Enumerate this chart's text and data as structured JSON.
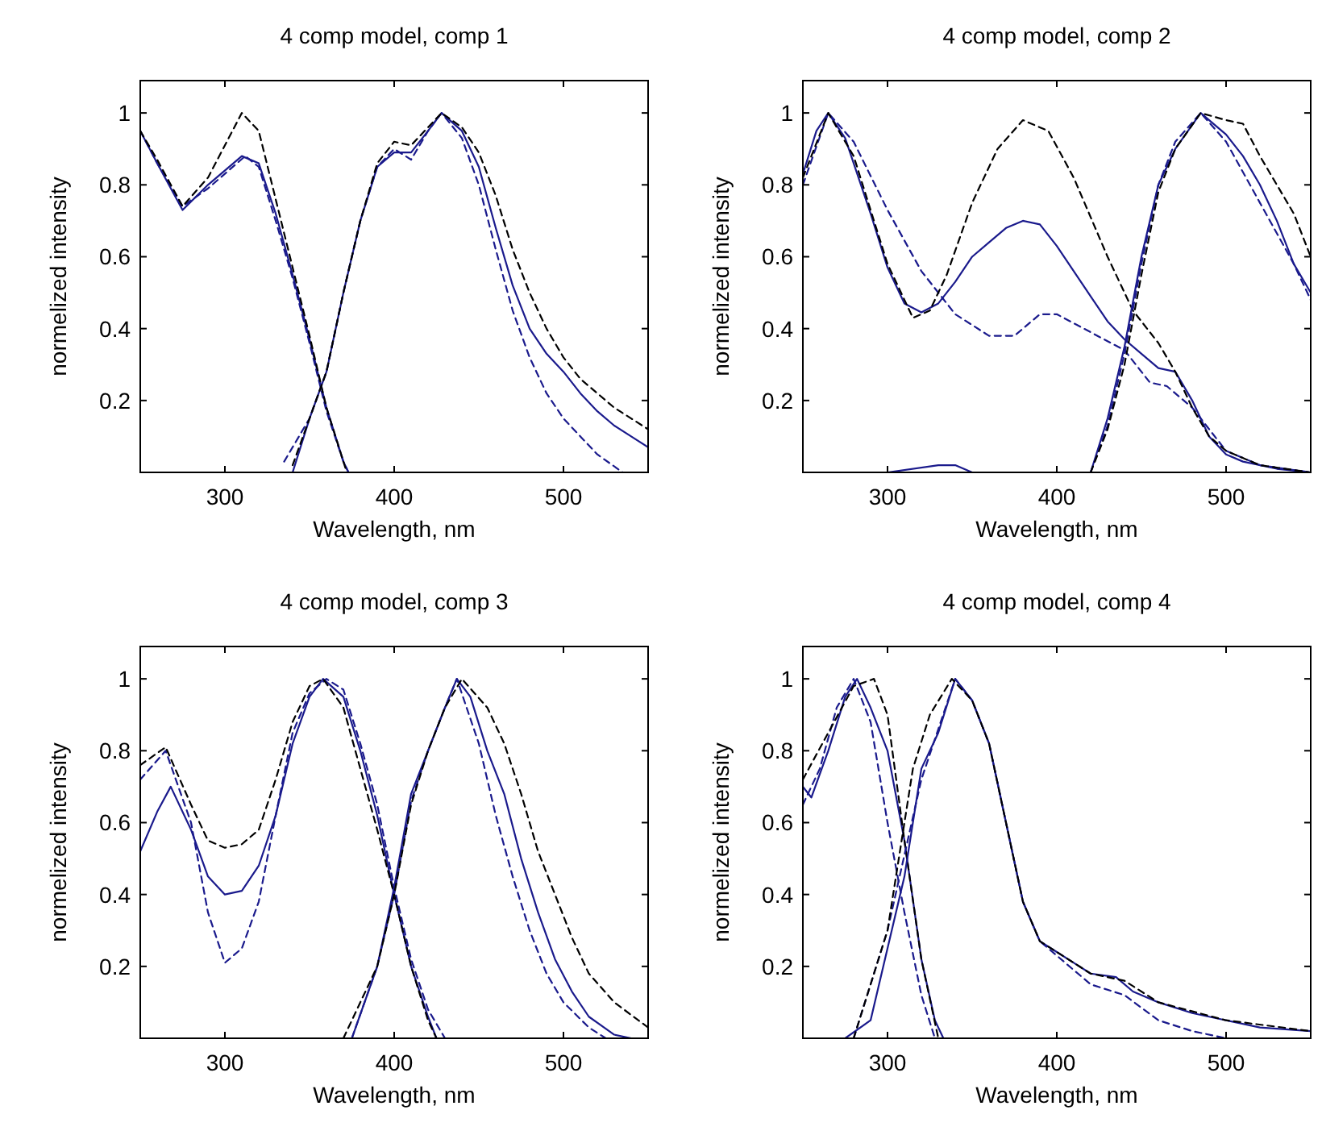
{
  "chart_data": [
    {
      "type": "line",
      "title": "4 comp model, comp 1",
      "xlabel": "Wavelength, nm",
      "ylabel": "normelized intensity",
      "xlim": [
        250,
        550
      ],
      "ylim": [
        0,
        1.09
      ],
      "xticks": [
        300,
        400,
        500
      ],
      "yticks": [
        0.2,
        0.4,
        0.6,
        0.8,
        1
      ],
      "grid": false,
      "series": [
        {
          "color": "#1a1a8c",
          "line_style": "solid",
          "x": [
            250,
            260,
            275,
            290,
            310,
            320,
            330,
            340,
            350,
            360,
            370,
            373
          ],
          "values": [
            0.95,
            0.86,
            0.73,
            0.8,
            0.88,
            0.86,
            0.72,
            0.55,
            0.37,
            0.18,
            0.03,
            0
          ]
        },
        {
          "color": "#1a1a8c",
          "line_style": "dashed",
          "x": [
            250,
            260,
            275,
            290,
            312,
            320,
            330,
            340,
            350,
            360,
            370,
            373
          ],
          "values": [
            0.95,
            0.86,
            0.74,
            0.79,
            0.88,
            0.85,
            0.7,
            0.54,
            0.36,
            0.17,
            0.03,
            0
          ]
        },
        {
          "color": "#000000",
          "line_style": "dashed",
          "x": [
            250,
            260,
            275,
            290,
            310,
            320,
            330,
            340,
            350,
            360,
            370,
            372
          ],
          "values": [
            0.95,
            0.87,
            0.74,
            0.82,
            1,
            0.95,
            0.76,
            0.57,
            0.38,
            0.18,
            0.03,
            0
          ]
        },
        {
          "color": "#1a1a8c",
          "line_style": "solid",
          "x": [
            340,
            350,
            360,
            370,
            380,
            390,
            400,
            410,
            420,
            428,
            440,
            450,
            460,
            470,
            480,
            490,
            500,
            510,
            520,
            530,
            540,
            550
          ],
          "values": [
            0,
            0.15,
            0.28,
            0.5,
            0.7,
            0.85,
            0.89,
            0.89,
            0.95,
            1,
            0.95,
            0.85,
            0.68,
            0.52,
            0.4,
            0.33,
            0.28,
            0.22,
            0.17,
            0.13,
            0.1,
            0.07
          ]
        },
        {
          "color": "#1a1a8c",
          "line_style": "dashed",
          "x": [
            335,
            350,
            360,
            370,
            380,
            390,
            400,
            410,
            420,
            428,
            440,
            450,
            460,
            470,
            480,
            490,
            500,
            510,
            520,
            535
          ],
          "values": [
            0.03,
            0.15,
            0.28,
            0.5,
            0.7,
            0.85,
            0.9,
            0.87,
            0.95,
            1,
            0.93,
            0.8,
            0.62,
            0.45,
            0.32,
            0.22,
            0.15,
            0.1,
            0.05,
            0
          ]
        },
        {
          "color": "#000000",
          "line_style": "dashed",
          "x": [
            340,
            350,
            360,
            370,
            380,
            390,
            400,
            410,
            420,
            428,
            440,
            450,
            460,
            470,
            480,
            490,
            500,
            510,
            520,
            530,
            540,
            550
          ],
          "values": [
            0.02,
            0.15,
            0.28,
            0.5,
            0.7,
            0.86,
            0.92,
            0.91,
            0.96,
            1,
            0.96,
            0.89,
            0.77,
            0.62,
            0.5,
            0.4,
            0.32,
            0.26,
            0.22,
            0.18,
            0.15,
            0.12
          ]
        }
      ]
    },
    {
      "type": "line",
      "title": "4 comp model, comp 2",
      "xlabel": "Wavelength, nm",
      "ylabel": "normelized intensity",
      "xlim": [
        250,
        550
      ],
      "ylim": [
        0,
        1.09
      ],
      "xticks": [
        300,
        400,
        500
      ],
      "yticks": [
        0.2,
        0.4,
        0.6,
        0.8,
        1
      ],
      "grid": false,
      "series": [
        {
          "color": "#1a1a8c",
          "line_style": "solid",
          "x": [
            250,
            258,
            265,
            275,
            290,
            300,
            310,
            320,
            330,
            340,
            350,
            360,
            370,
            380,
            390,
            400,
            410,
            420,
            430,
            440,
            450,
            460,
            470,
            480,
            490,
            500,
            510,
            530,
            550
          ],
          "values": [
            0.83,
            0.95,
            1,
            0.93,
            0.72,
            0.57,
            0.47,
            0.445,
            0.47,
            0.53,
            0.6,
            0.64,
            0.68,
            0.7,
            0.69,
            0.63,
            0.56,
            0.49,
            0.42,
            0.37,
            0.33,
            0.29,
            0.28,
            0.2,
            0.1,
            0.05,
            0.03,
            0.01,
            0
          ]
        },
        {
          "color": "#1a1a8c",
          "line_style": "dashed",
          "x": [
            250,
            265,
            280,
            300,
            320,
            340,
            360,
            375,
            390,
            400,
            420,
            440,
            455,
            465,
            480,
            500,
            520,
            550
          ],
          "values": [
            0.8,
            1,
            0.92,
            0.73,
            0.56,
            0.44,
            0.38,
            0.38,
            0.44,
            0.44,
            0.39,
            0.34,
            0.25,
            0.24,
            0.18,
            0.06,
            0.02,
            0
          ]
        },
        {
          "color": "#000000",
          "line_style": "dashed",
          "x": [
            250,
            265,
            280,
            300,
            315,
            325,
            335,
            350,
            365,
            380,
            395,
            410,
            430,
            445,
            460,
            470,
            480,
            490,
            500,
            520,
            550
          ],
          "values": [
            0.82,
            1,
            0.88,
            0.58,
            0.43,
            0.45,
            0.55,
            0.75,
            0.9,
            0.98,
            0.95,
            0.82,
            0.6,
            0.45,
            0.36,
            0.28,
            0.18,
            0.1,
            0.06,
            0.02,
            0
          ]
        },
        {
          "color": "#1a1a8c",
          "line_style": "solid",
          "x": [
            300,
            330,
            340,
            350,
            420,
            430,
            440,
            450,
            460,
            470,
            485,
            500,
            510,
            520,
            530,
            540,
            550
          ],
          "values": [
            0,
            0.02,
            0.02,
            0,
            0,
            0.15,
            0.35,
            0.6,
            0.8,
            0.9,
            1,
            0.94,
            0.88,
            0.8,
            0.7,
            0.58,
            0.5
          ]
        },
        {
          "color": "#1a1a8c",
          "line_style": "dashed",
          "x": [
            420,
            430,
            440,
            450,
            460,
            470,
            485,
            500,
            520,
            540,
            550
          ],
          "values": [
            0,
            0.13,
            0.33,
            0.58,
            0.8,
            0.92,
            1,
            0.92,
            0.75,
            0.58,
            0.48
          ]
        },
        {
          "color": "#000000",
          "line_style": "dashed",
          "x": [
            420,
            430,
            440,
            450,
            460,
            470,
            485,
            500,
            510,
            520,
            540,
            550
          ],
          "values": [
            0,
            0.12,
            0.3,
            0.55,
            0.78,
            0.9,
            1,
            0.98,
            0.97,
            0.88,
            0.72,
            0.6
          ]
        }
      ]
    },
    {
      "type": "line",
      "title": "4 comp model, comp 3",
      "xlabel": "Wavelength, nm",
      "ylabel": "normelized intensity",
      "xlim": [
        250,
        550
      ],
      "ylim": [
        0,
        1.09
      ],
      "xticks": [
        300,
        400,
        500
      ],
      "yticks": [
        0.2,
        0.4,
        0.6,
        0.8,
        1
      ],
      "grid": false,
      "series": [
        {
          "color": "#1a1a8c",
          "line_style": "solid",
          "x": [
            250,
            260,
            268,
            280,
            290,
            300,
            310,
            320,
            330,
            340,
            350,
            358,
            370,
            380,
            390,
            400,
            410,
            420,
            425
          ],
          "values": [
            0.52,
            0.63,
            0.7,
            0.58,
            0.45,
            0.4,
            0.41,
            0.48,
            0.62,
            0.82,
            0.95,
            1,
            0.95,
            0.8,
            0.62,
            0.4,
            0.2,
            0.06,
            0
          ]
        },
        {
          "color": "#1a1a8c",
          "line_style": "dashed",
          "x": [
            250,
            265,
            280,
            290,
            300,
            310,
            320,
            330,
            340,
            350,
            360,
            370,
            380,
            390,
            400,
            410,
            420,
            430
          ],
          "values": [
            0.72,
            0.8,
            0.6,
            0.35,
            0.21,
            0.25,
            0.38,
            0.62,
            0.85,
            0.96,
            1,
            0.97,
            0.82,
            0.65,
            0.42,
            0.22,
            0.08,
            0
          ]
        },
        {
          "color": "#000000",
          "line_style": "dashed",
          "x": [
            250,
            265,
            280,
            290,
            300,
            310,
            320,
            330,
            340,
            350,
            358,
            370,
            380,
            390,
            400,
            410,
            420,
            425
          ],
          "values": [
            0.76,
            0.81,
            0.65,
            0.55,
            0.53,
            0.54,
            0.58,
            0.72,
            0.88,
            0.98,
            1,
            0.92,
            0.75,
            0.58,
            0.4,
            0.2,
            0.05,
            0
          ]
        },
        {
          "color": "#1a1a8c",
          "line_style": "solid",
          "x": [
            375,
            390,
            400,
            410,
            420,
            430,
            437,
            445,
            455,
            465,
            475,
            485,
            495,
            505,
            515,
            530,
            540
          ],
          "values": [
            0,
            0.2,
            0.42,
            0.68,
            0.8,
            0.92,
            1,
            0.95,
            0.8,
            0.68,
            0.5,
            0.35,
            0.22,
            0.13,
            0.06,
            0.01,
            0
          ]
        },
        {
          "color": "#1a1a8c",
          "line_style": "dashed",
          "x": [
            375,
            390,
            400,
            410,
            420,
            430,
            437,
            450,
            460,
            470,
            480,
            490,
            500,
            515,
            525
          ],
          "values": [
            0,
            0.2,
            0.4,
            0.66,
            0.8,
            0.92,
            1,
            0.82,
            0.62,
            0.45,
            0.3,
            0.18,
            0.1,
            0.03,
            0
          ]
        },
        {
          "color": "#000000",
          "line_style": "dashed",
          "x": [
            370,
            390,
            400,
            410,
            420,
            430,
            440,
            455,
            465,
            475,
            485,
            495,
            505,
            515,
            530,
            550
          ],
          "values": [
            0,
            0.2,
            0.4,
            0.65,
            0.8,
            0.92,
            1,
            0.92,
            0.82,
            0.68,
            0.52,
            0.4,
            0.28,
            0.18,
            0.1,
            0.03
          ]
        }
      ]
    },
    {
      "type": "line",
      "title": "4 comp model, comp 4",
      "xlabel": "Wavelength, nm",
      "ylabel": "normelized intensity",
      "xlim": [
        250,
        550
      ],
      "ylim": [
        0,
        1.09
      ],
      "xticks": [
        300,
        400,
        500
      ],
      "yticks": [
        0.2,
        0.4,
        0.6,
        0.8,
        1
      ],
      "grid": false,
      "series": [
        {
          "color": "#1a1a8c",
          "line_style": "solid",
          "x": [
            250,
            255,
            265,
            275,
            282,
            290,
            300,
            310,
            320,
            328,
            333
          ],
          "values": [
            0.7,
            0.67,
            0.8,
            0.95,
            1,
            0.92,
            0.8,
            0.55,
            0.22,
            0.05,
            0
          ]
        },
        {
          "color": "#1a1a8c",
          "line_style": "dashed",
          "x": [
            250,
            260,
            270,
            280,
            290,
            300,
            310,
            320,
            328
          ],
          "values": [
            0.65,
            0.75,
            0.92,
            1,
            0.88,
            0.6,
            0.35,
            0.12,
            0
          ]
        },
        {
          "color": "#000000",
          "line_style": "dashed",
          "x": [
            250,
            265,
            280,
            292,
            300,
            310,
            320,
            330
          ],
          "values": [
            0.72,
            0.85,
            0.98,
            1,
            0.9,
            0.55,
            0.22,
            0
          ]
        },
        {
          "color": "#1a1a8c",
          "line_style": "solid",
          "x": [
            275,
            290,
            300,
            310,
            320,
            330,
            340,
            350,
            360,
            370,
            380,
            390,
            400,
            410,
            420,
            435,
            445,
            460,
            480,
            500,
            520,
            550
          ],
          "values": [
            0,
            0.05,
            0.25,
            0.45,
            0.75,
            0.85,
            1,
            0.94,
            0.82,
            0.6,
            0.38,
            0.27,
            0.24,
            0.21,
            0.18,
            0.17,
            0.13,
            0.1,
            0.07,
            0.05,
            0.03,
            0.02
          ]
        },
        {
          "color": "#1a1a8c",
          "line_style": "dashed",
          "x": [
            280,
            300,
            320,
            330,
            340,
            350,
            360,
            370,
            380,
            390,
            400,
            420,
            440,
            460,
            480,
            500
          ],
          "values": [
            0,
            0.3,
            0.72,
            0.86,
            1,
            0.94,
            0.82,
            0.6,
            0.38,
            0.27,
            0.23,
            0.15,
            0.12,
            0.05,
            0.02,
            0
          ]
        },
        {
          "color": "#000000",
          "line_style": "dashed",
          "x": [
            280,
            300,
            315,
            325,
            338,
            350,
            360,
            370,
            380,
            390,
            400,
            420,
            440,
            460,
            500,
            550
          ],
          "values": [
            0,
            0.3,
            0.75,
            0.9,
            1,
            0.94,
            0.82,
            0.6,
            0.38,
            0.27,
            0.24,
            0.18,
            0.16,
            0.1,
            0.05,
            0.02
          ]
        }
      ]
    }
  ]
}
